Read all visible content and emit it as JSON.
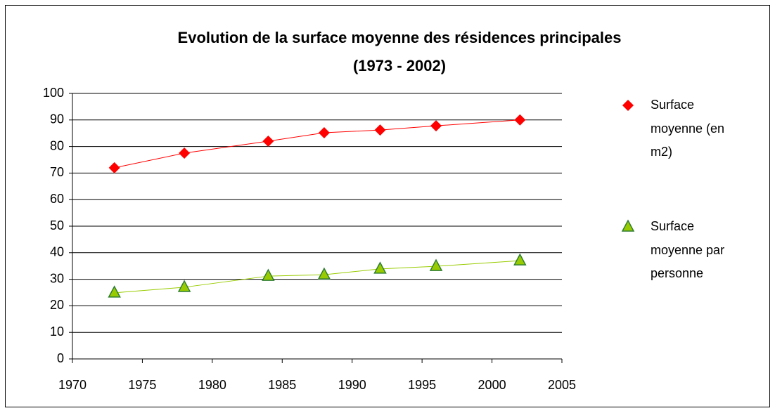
{
  "chart_data": {
    "type": "scatter",
    "title": "Evolution de la surface moyenne des résidences principales",
    "subtitle": "(1973 - 2002)",
    "series": [
      {
        "name": "Surface moyenne (en m2)",
        "color": "#ff0000",
        "marker": "diamond",
        "x": [
          1973,
          1978,
          1984,
          1988,
          1992,
          1996,
          2002
        ],
        "values": [
          72,
          77.5,
          82,
          85.2,
          86.2,
          87.8,
          90
        ]
      },
      {
        "name": "Surface moyenne par personne",
        "color": "#99cc00",
        "marker": "triangle",
        "x": [
          1973,
          1978,
          1984,
          1988,
          1992,
          1996,
          2002
        ],
        "values": [
          24.9,
          27,
          31.2,
          31.7,
          33.9,
          34.9,
          37
        ]
      }
    ],
    "xlim": [
      1970,
      2005
    ],
    "xticks": [
      1970,
      1975,
      1980,
      1985,
      1990,
      1995,
      2000,
      2005
    ],
    "ylim": [
      0,
      100
    ],
    "yticks": [
      0,
      10,
      20,
      30,
      40,
      50,
      60,
      70,
      80,
      90,
      100
    ],
    "grid": true,
    "legend": "right"
  }
}
